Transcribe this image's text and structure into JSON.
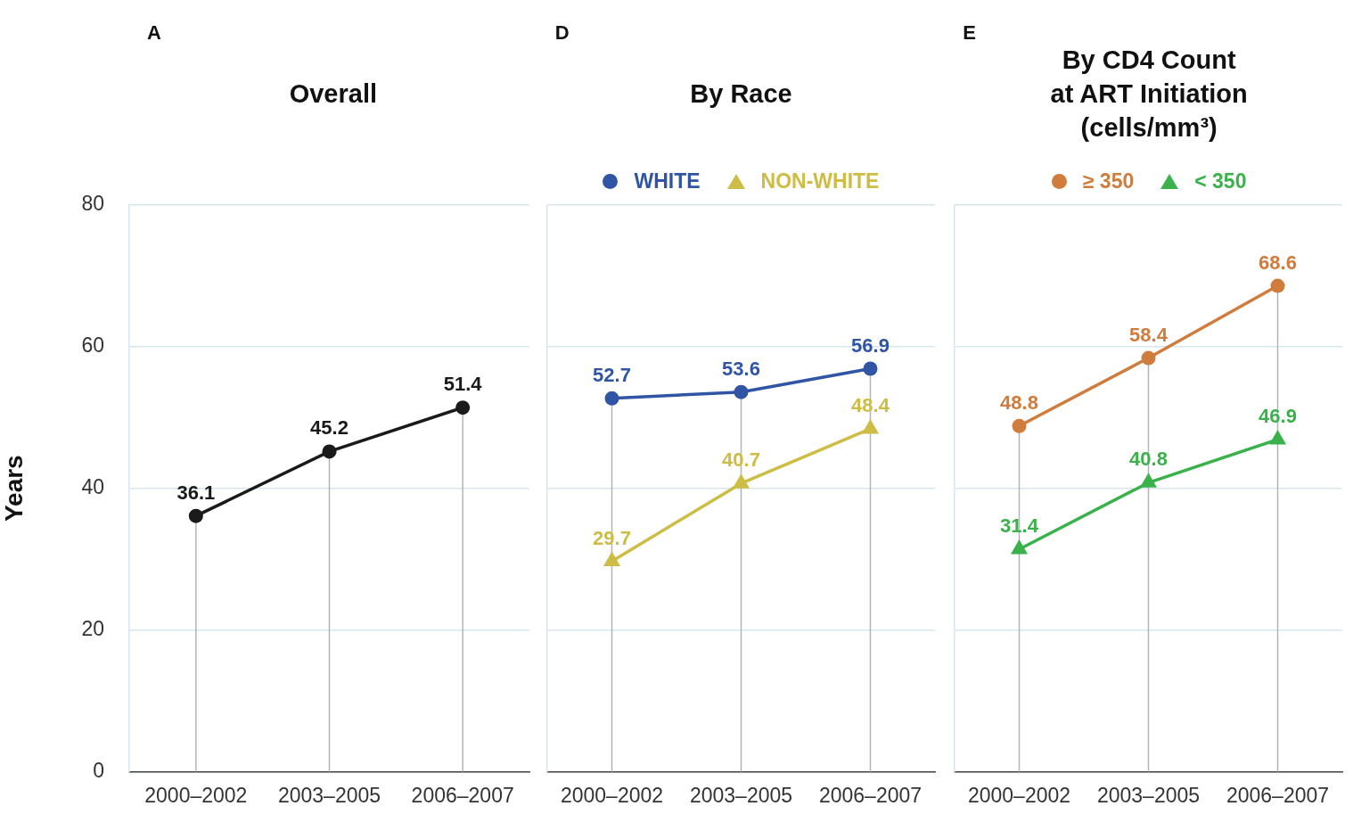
{
  "chart_data": [
    {
      "type": "line",
      "title": "Overall",
      "ylabel": "Years",
      "annotations": [
        "A"
      ],
      "categories": [
        "2000–2002",
        "2003–2005",
        "2006–2007"
      ],
      "ylim": [
        0,
        80
      ],
      "yticks": [
        0,
        20,
        40,
        60,
        80
      ],
      "grid": true,
      "marker": "circle",
      "data_labels": true,
      "series": [
        {
          "color": "#1a1a1a",
          "values": [
            36.1,
            45.2,
            51.4
          ]
        }
      ]
    },
    {
      "type": "line",
      "title": "By Race",
      "annotations": [
        "D"
      ],
      "categories": [
        "2000–2002",
        "2003–2005",
        "2006–2007"
      ],
      "ylim": [
        0,
        80
      ],
      "yticks": [
        0,
        20,
        40,
        60,
        80
      ],
      "grid": true,
      "tick_labels": "x",
      "legend": "top",
      "data_labels": true,
      "series": [
        {
          "name": "WHITE",
          "color": "#2f55a4",
          "marker": "circle",
          "values": [
            52.7,
            53.6,
            56.9
          ]
        },
        {
          "name": "NON-WHITE",
          "color": "#cdbd45",
          "marker": "triangle",
          "values": [
            29.7,
            40.7,
            48.4
          ]
        }
      ]
    },
    {
      "type": "line",
      "title": "By CD4 Count\nat ART Initiation\n(cells/mm³)",
      "annotations": [
        "E"
      ],
      "categories": [
        "2000–2002",
        "2003–2005",
        "2006–2007"
      ],
      "ylim": [
        0,
        80
      ],
      "yticks": [
        0,
        20,
        40,
        60,
        80
      ],
      "grid": true,
      "tick_labels": "x",
      "legend": "top",
      "data_labels": true,
      "series": [
        {
          "name": "≥ 350",
          "color": "#cf7c3c",
          "marker": "circle",
          "values": [
            48.8,
            58.4,
            68.6
          ]
        },
        {
          "name": "< 350",
          "color": "#3bb14c",
          "marker": "triangle",
          "values": [
            31.4,
            40.8,
            46.9
          ]
        }
      ]
    }
  ]
}
